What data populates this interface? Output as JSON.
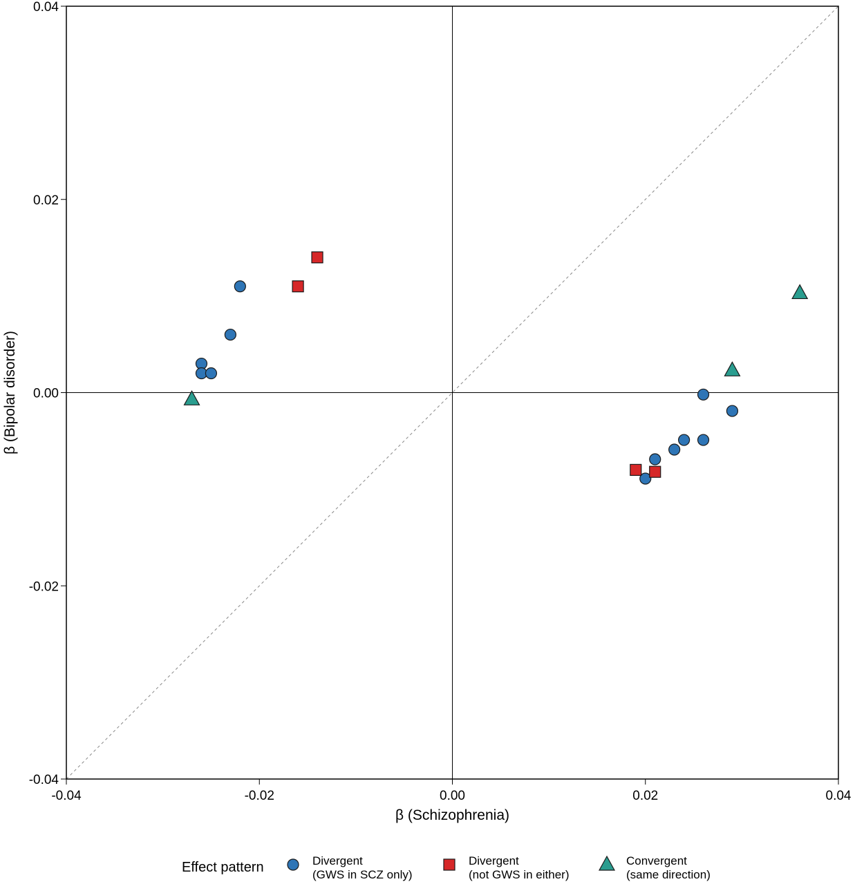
{
  "chart_data": {
    "type": "scatter",
    "xlabel": "β (Schizophrenia)",
    "ylabel": "β (Bipolar disorder)",
    "xlim": [
      -0.04,
      0.04
    ],
    "ylim": [
      -0.04,
      0.04
    ],
    "xticks": [
      "-0.04",
      "-0.02",
      "0.00",
      "0.02",
      "0.04"
    ],
    "yticks": [
      "-0.04",
      "-0.02",
      "0.00",
      "0.02",
      "0.04"
    ],
    "grid": false,
    "reference_lines": [
      "x = 0",
      "y = 0",
      "y = x (dashed)"
    ],
    "legend": {
      "title": "Effect pattern",
      "placement": "bottom"
    },
    "series": [
      {
        "name_line1": "Divergent",
        "name_line2": "(GWS in SCZ only)",
        "marker": "circle",
        "color": "#2e75b6",
        "points": [
          {
            "x": -0.022,
            "y": 0.011
          },
          {
            "x": -0.023,
            "y": 0.006
          },
          {
            "x": -0.026,
            "y": 0.003
          },
          {
            "x": -0.026,
            "y": 0.002
          },
          {
            "x": -0.025,
            "y": 0.002
          },
          {
            "x": 0.026,
            "y": -0.0002
          },
          {
            "x": 0.029,
            "y": -0.0019
          },
          {
            "x": 0.026,
            "y": -0.0049
          },
          {
            "x": 0.024,
            "y": -0.0049
          },
          {
            "x": 0.023,
            "y": -0.0059
          },
          {
            "x": 0.021,
            "y": -0.0069
          },
          {
            "x": 0.02,
            "y": -0.0089
          }
        ]
      },
      {
        "name_line1": "Divergent",
        "name_line2": "(not GWS in either)",
        "marker": "square",
        "color": "#d62728",
        "points": [
          {
            "x": -0.014,
            "y": 0.014
          },
          {
            "x": -0.016,
            "y": 0.011
          },
          {
            "x": 0.019,
            "y": -0.008
          },
          {
            "x": 0.021,
            "y": -0.0082
          }
        ]
      },
      {
        "name_line1": "Convergent",
        "name_line2": "(same direction)",
        "marker": "triangle",
        "color": "#2a9d8f",
        "points": [
          {
            "x": -0.027,
            "y": -0.0007
          },
          {
            "x": 0.029,
            "y": 0.0023
          },
          {
            "x": 0.036,
            "y": 0.0103
          }
        ]
      }
    ]
  }
}
